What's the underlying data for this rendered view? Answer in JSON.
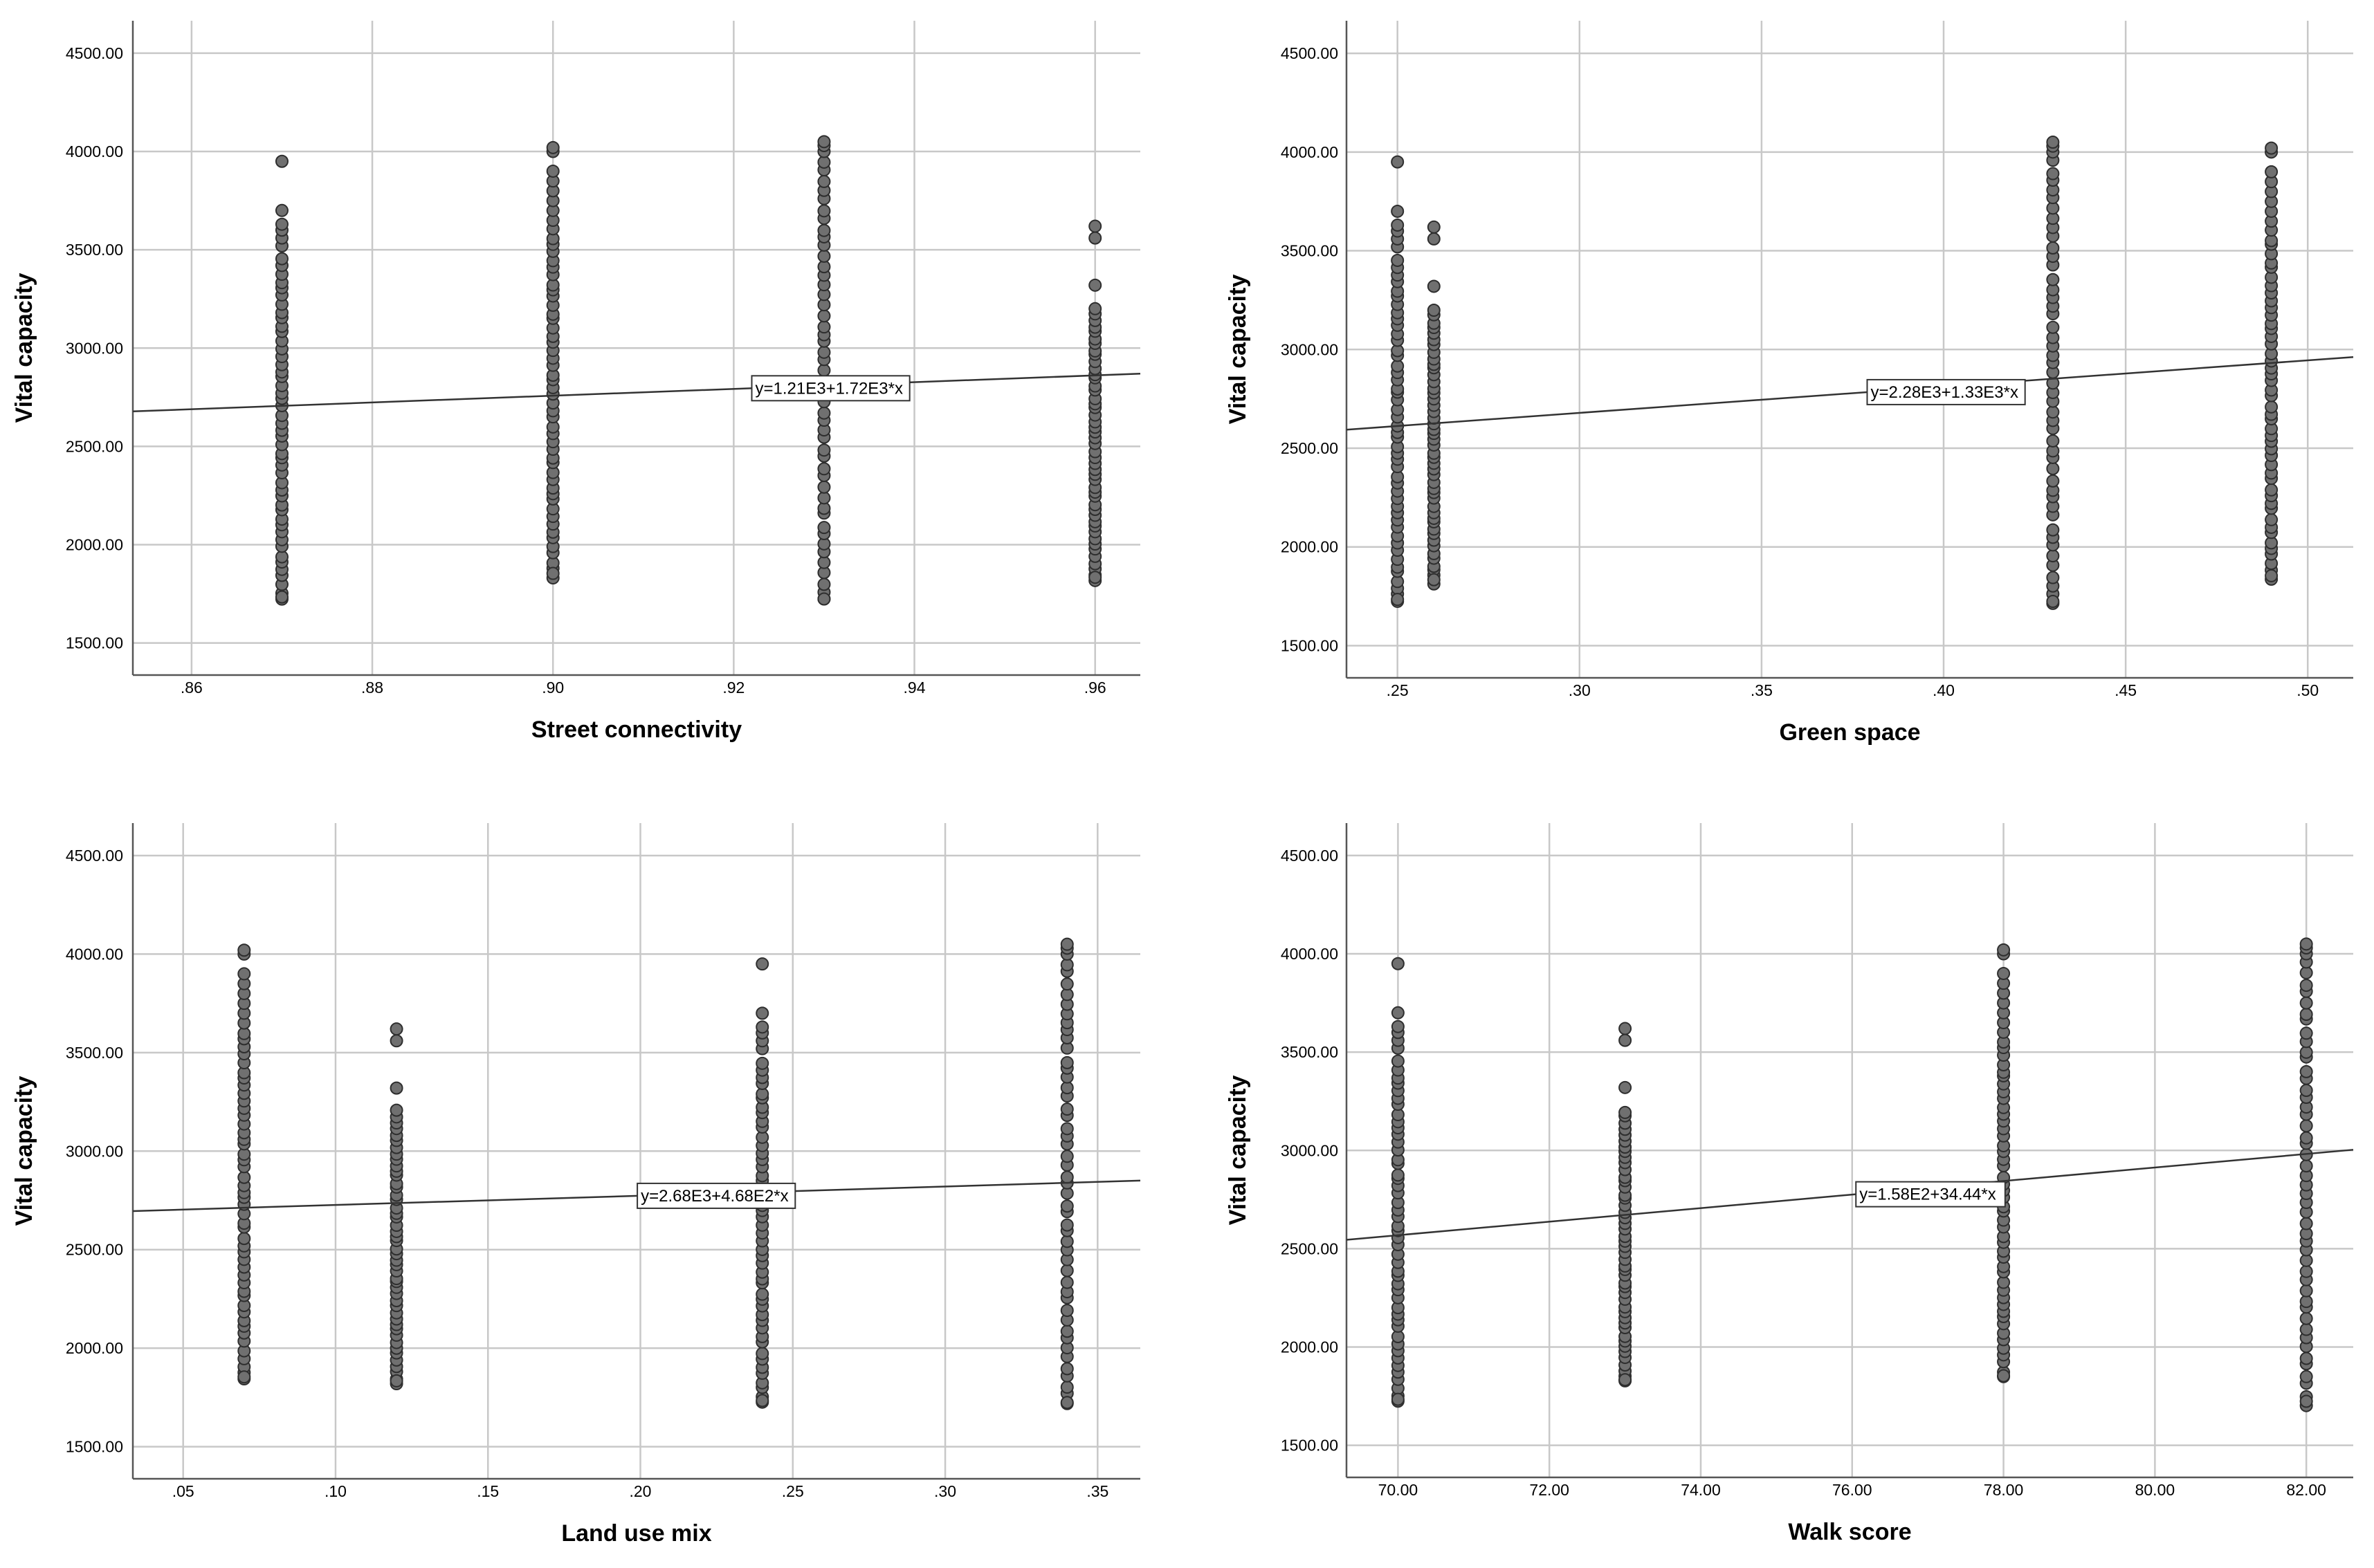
{
  "chart_data": [
    {
      "type": "scatter",
      "title": "",
      "xlabel": "Street connectivity",
      "ylabel": "Vital capacity",
      "x_ticks": [
        ".86",
        ".88",
        ".90",
        ".92",
        ".94",
        ".96"
      ],
      "x_tick_values": [
        0.86,
        0.88,
        0.9,
        0.92,
        0.94,
        0.96
      ],
      "xlim": [
        0.8535,
        0.965
      ],
      "y_ticks": [
        "1500.00",
        "2000.00",
        "2500.00",
        "3000.00",
        "3500.00",
        "4000.00",
        "4500.00"
      ],
      "y_tick_values": [
        1500,
        2000,
        2500,
        3000,
        3500,
        4000,
        4500
      ],
      "ylim": [
        1337,
        4665
      ],
      "grid": true,
      "points": [
        {
          "x": 0.87,
          "y_min": 1720,
          "y_dense_max": 3450,
          "y_top": [
            3520,
            3560,
            3600,
            3630,
            3700,
            3950
          ]
        },
        {
          "x": 0.9,
          "y_min": 1840,
          "y_dense_max": 3600,
          "y_top": [
            3650,
            3700,
            3750,
            3800,
            3850,
            3900,
            4000,
            4020
          ]
        },
        {
          "x": 0.93,
          "y_min": 1710,
          "y_dense_max": 3950,
          "y_top": [
            4000,
            4030,
            4050
          ]
        },
        {
          "x": 0.96,
          "y_min": 1820,
          "y_dense_max": 3200,
          "y_top": [
            3320,
            3560,
            3620
          ]
        }
      ],
      "fit": {
        "intercept": 1210,
        "slope": 1720,
        "label": "y=1.21E3+1.72E3*x",
        "label_x": 0.922
      }
    },
    {
      "type": "scatter",
      "title": "",
      "xlabel": "Green space",
      "ylabel": "Vital capacity",
      "x_ticks": [
        ".25",
        ".30",
        ".35",
        ".40",
        ".45",
        ".50"
      ],
      "x_tick_values": [
        0.25,
        0.3,
        0.35,
        0.4,
        0.45,
        0.5
      ],
      "xlim": [
        0.236,
        0.5125
      ],
      "y_ticks": [
        "1500.00",
        "2000.00",
        "2500.00",
        "3000.00",
        "3500.00",
        "4000.00",
        "4500.00"
      ],
      "y_tick_values": [
        1500,
        2000,
        2500,
        3000,
        3500,
        4000,
        4500
      ],
      "ylim": [
        1337,
        4665
      ],
      "grid": true,
      "points": [
        {
          "x": 0.25,
          "y_min": 1720,
          "y_dense_max": 3450,
          "y_top": [
            3520,
            3560,
            3600,
            3630,
            3700,
            3950
          ]
        },
        {
          "x": 0.26,
          "y_min": 1820,
          "y_dense_max": 3200,
          "y_top": [
            3320,
            3560,
            3620
          ]
        },
        {
          "x": 0.43,
          "y_min": 1710,
          "y_dense_max": 3950,
          "y_top": [
            4000,
            4030,
            4050
          ]
        },
        {
          "x": 0.49,
          "y_min": 1840,
          "y_dense_max": 3600,
          "y_top": [
            3650,
            3700,
            3750,
            3800,
            3850,
            3900,
            4000,
            4020
          ]
        }
      ],
      "fit": {
        "intercept": 2280,
        "slope": 1330,
        "label": "y=2.28E3+1.33E3*x",
        "label_x": 0.379
      }
    },
    {
      "type": "scatter",
      "title": "",
      "xlabel": "Land use mix",
      "ylabel": "Vital capacity",
      "x_ticks": [
        ".05",
        ".10",
        ".15",
        ".20",
        ".25",
        ".30",
        ".35"
      ],
      "x_tick_values": [
        0.05,
        0.1,
        0.15,
        0.2,
        0.25,
        0.3,
        0.35
      ],
      "xlim": [
        0.0335,
        0.364
      ],
      "y_ticks": [
        "1500.00",
        "2000.00",
        "2500.00",
        "3000.00",
        "3500.00",
        "4000.00",
        "4500.00"
      ],
      "y_tick_values": [
        1500,
        2000,
        2500,
        3000,
        3500,
        4000,
        4500
      ],
      "ylim": [
        1337,
        4665
      ],
      "grid": true,
      "points": [
        {
          "x": 0.07,
          "y_min": 1840,
          "y_dense_max": 3600,
          "y_top": [
            3650,
            3700,
            3750,
            3800,
            3850,
            3900,
            4000,
            4020
          ]
        },
        {
          "x": 0.12,
          "y_min": 1820,
          "y_dense_max": 3200,
          "y_top": [
            3320,
            3560,
            3620
          ]
        },
        {
          "x": 0.24,
          "y_min": 1720,
          "y_dense_max": 3450,
          "y_top": [
            3520,
            3560,
            3600,
            3630,
            3700,
            3950
          ]
        },
        {
          "x": 0.34,
          "y_min": 1710,
          "y_dense_max": 3950,
          "y_top": [
            4000,
            4030,
            4050
          ]
        }
      ],
      "fit": {
        "intercept": 2680,
        "slope": 468,
        "label": "y=2.68E3+4.68E2*x",
        "label_x": 0.199
      }
    },
    {
      "type": "scatter",
      "title": "",
      "xlabel": "Walk score",
      "ylabel": "Vital capacity",
      "x_ticks": [
        "70.00",
        "72.00",
        "74.00",
        "76.00",
        "78.00",
        "80.00",
        "82.00"
      ],
      "x_tick_values": [
        70,
        72,
        74,
        76,
        78,
        80,
        82
      ],
      "xlim": [
        69.32,
        82.62
      ],
      "y_ticks": [
        "1500.00",
        "2000.00",
        "2500.00",
        "3000.00",
        "3500.00",
        "4000.00",
        "4500.00"
      ],
      "y_tick_values": [
        1500,
        2000,
        2500,
        3000,
        3500,
        4000,
        4500
      ],
      "ylim": [
        1337,
        4665
      ],
      "grid": true,
      "points": [
        {
          "x": 70,
          "y_min": 1720,
          "y_dense_max": 3450,
          "y_top": [
            3520,
            3560,
            3600,
            3630,
            3700,
            3950
          ]
        },
        {
          "x": 73,
          "y_min": 1820,
          "y_dense_max": 3200,
          "y_top": [
            3320,
            3560,
            3620
          ]
        },
        {
          "x": 78,
          "y_min": 1840,
          "y_dense_max": 3600,
          "y_top": [
            3650,
            3700,
            3750,
            3800,
            3850,
            3900,
            4000,
            4020
          ]
        },
        {
          "x": 82,
          "y_min": 1710,
          "y_dense_max": 3950,
          "y_top": [
            4000,
            4030,
            4050
          ]
        }
      ],
      "fit": {
        "intercept": 158,
        "slope": 34.44,
        "label": "y=1.58E2+34.44*x",
        "label_x": 76.05
      }
    }
  ]
}
